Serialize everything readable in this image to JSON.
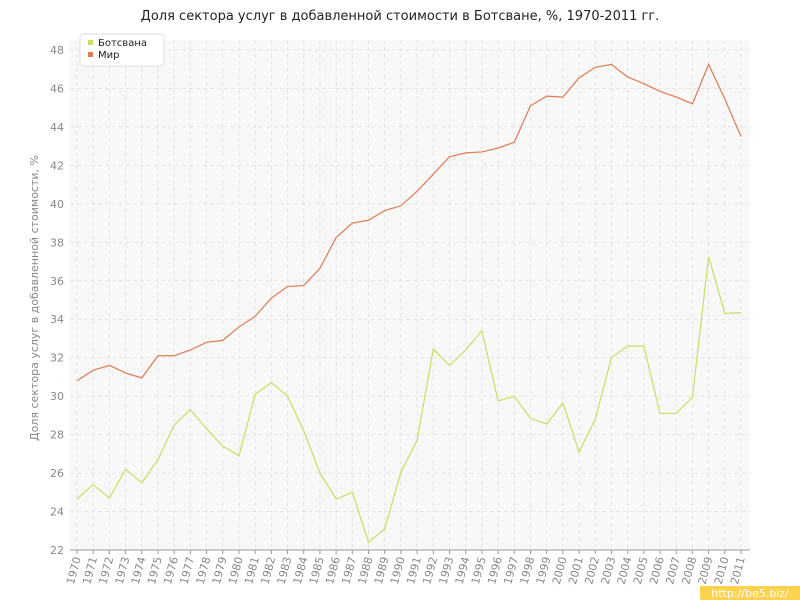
{
  "chart_data": {
    "type": "line",
    "title": "Доля сектора услуг в добавленной стоимости в Ботсване, %, 1970-2011 гг.",
    "y_label": "Доля сектора услуг в добавленной стоимости, %",
    "watermark": "http://be5.biz/",
    "categories": [
      "1970",
      "1971",
      "1972",
      "1973",
      "1974",
      "1975",
      "1976",
      "1977",
      "1978",
      "1979",
      "1980",
      "1981",
      "1982",
      "1983",
      "1984",
      "1985",
      "1986",
      "1987",
      "1988",
      "1989",
      "1990",
      "1991",
      "1992",
      "1993",
      "1994",
      "1995",
      "1996",
      "1997",
      "1998",
      "1999",
      "2000",
      "2001",
      "2002",
      "2003",
      "2004",
      "2005",
      "2006",
      "2007",
      "2008",
      "2009",
      "2010",
      "2011"
    ],
    "series": [
      {
        "name": "Ботсвана",
        "color": "#c5e063",
        "values": [
          24.65,
          25.4,
          24.7,
          26.2,
          25.5,
          26.7,
          28.5,
          29.3,
          28.3,
          27.4,
          26.9,
          30.1,
          30.7,
          30.0,
          28.2,
          26.0,
          24.65,
          25.0,
          22.4,
          23.1,
          26.05,
          27.7,
          32.45,
          31.6,
          32.4,
          33.4,
          29.75,
          30.0,
          28.85,
          28.55,
          29.65,
          27.1,
          28.8,
          32.0,
          32.6,
          32.6,
          29.1,
          29.1,
          29.95,
          37.25,
          34.3,
          34.35
        ]
      },
      {
        "name": "Мир",
        "color": "#e07a52",
        "values": [
          30.8,
          31.35,
          31.6,
          31.2,
          30.95,
          32.1,
          32.1,
          32.4,
          32.8,
          32.9,
          33.6,
          34.15,
          35.1,
          35.7,
          35.75,
          36.65,
          38.25,
          39.0,
          39.15,
          39.65,
          39.9,
          40.65,
          41.55,
          42.45,
          42.65,
          42.7,
          42.9,
          43.2,
          45.1,
          45.6,
          45.55,
          46.55,
          47.1,
          47.25,
          46.6,
          46.25,
          45.85,
          45.55,
          45.2,
          47.25,
          45.45,
          43.5
        ]
      }
    ],
    "ylim": [
      22,
      48
    ],
    "yticks": [
      22,
      24,
      26,
      28,
      30,
      32,
      34,
      36,
      38,
      40,
      42,
      44,
      46,
      48
    ],
    "grid": true,
    "legend": "top-left"
  }
}
